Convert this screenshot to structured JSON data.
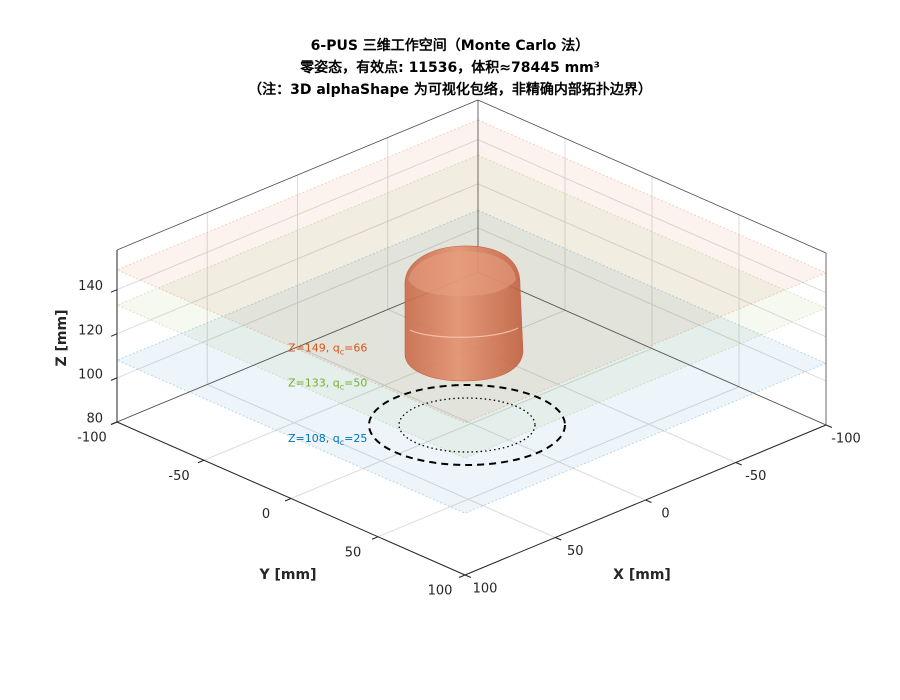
{
  "chart_data": {
    "type": "workspace3d",
    "title": [
      "6-PUS 三维工作空间（Monte Carlo 法）",
      "零姿态，有效点: 11536，体积≈78445 mm³",
      "（注：3D alphaShape 为可视化包络，非精确内部拓扑边界）"
    ],
    "xlabel": "X [mm]",
    "ylabel": "Y [mm]",
    "zlabel": "Z [mm]",
    "xlim": [
      -100,
      100
    ],
    "ylim": [
      -100,
      100
    ],
    "zlim": [
      80,
      158
    ],
    "xticks": [
      -100,
      -50,
      0,
      50,
      100
    ],
    "yticks": [
      -100,
      -50,
      0,
      50,
      100
    ],
    "zticks": [
      80,
      100,
      120,
      140
    ],
    "grid": true,
    "slices": [
      {
        "z": 108,
        "label": [
          "Z=108, q",
          "c",
          "=25"
        ],
        "color": "#0072bd"
      },
      {
        "z": 133,
        "label": [
          "Z=133, q",
          "c",
          "=50"
        ],
        "color": "#77ac30"
      },
      {
        "z": 149,
        "label": [
          "Z=149, q",
          "c",
          "=66"
        ],
        "color": "#d95319"
      }
    ]
  }
}
